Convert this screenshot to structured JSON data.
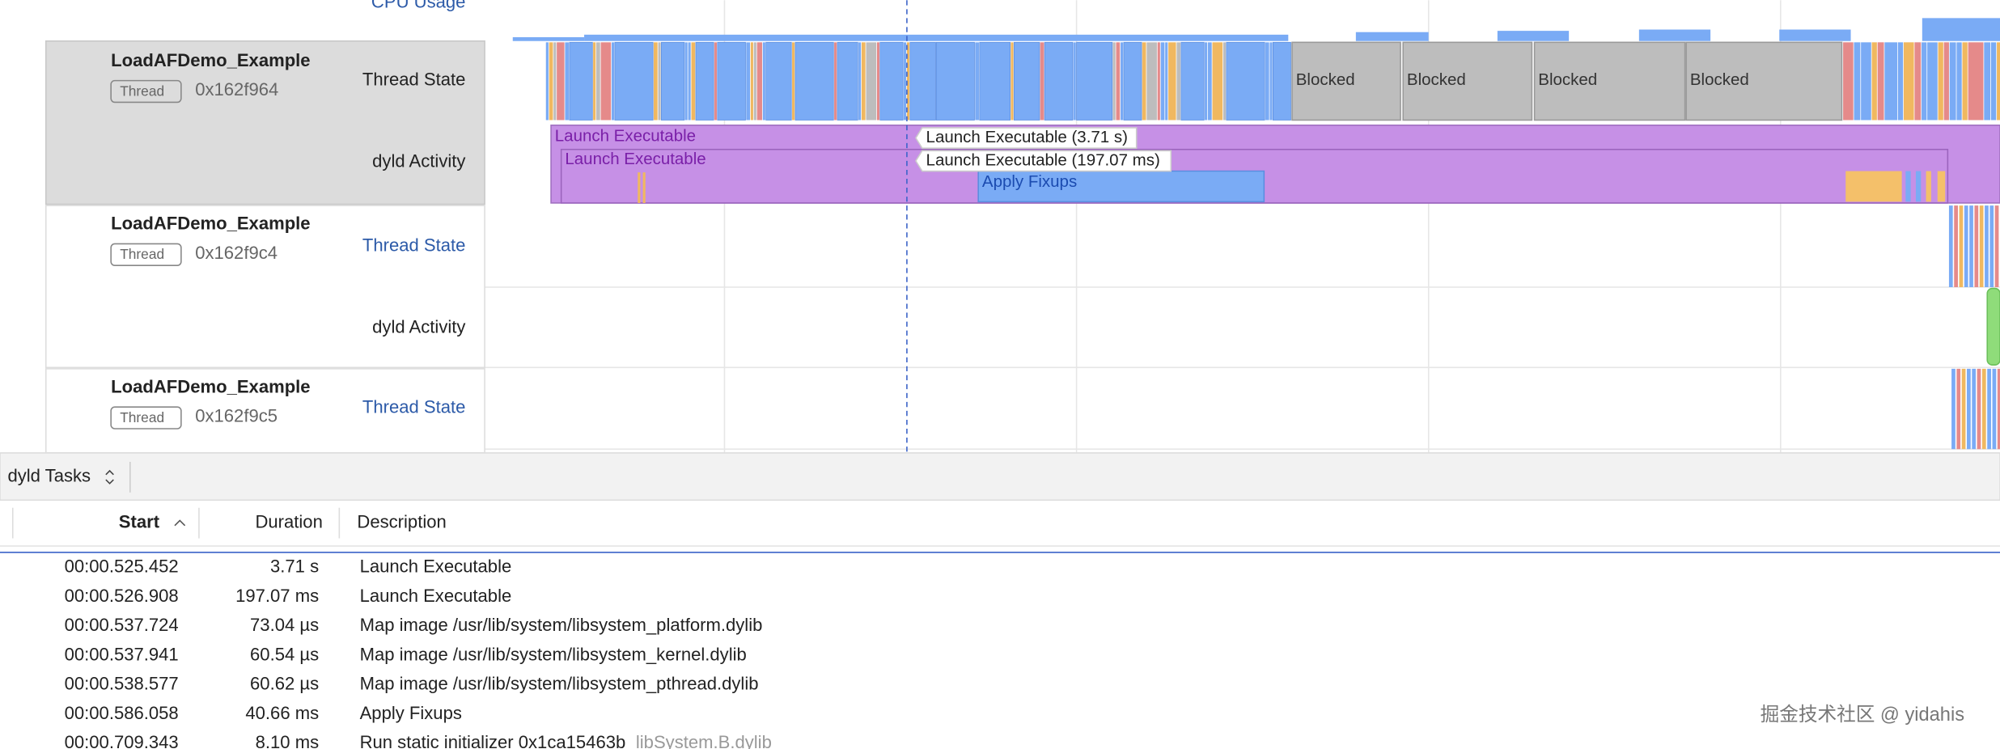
{
  "cpu_label": "CPU Usage",
  "threads": [
    {
      "name": "LoadAFDemo_Example",
      "badge": "Thread",
      "id": "0x162f964",
      "tracks": [
        "Thread State",
        "dyld Activity"
      ]
    },
    {
      "name": "LoadAFDemo_Example",
      "badge": "Thread",
      "id": "0x162f9c4",
      "tracks": [
        "Thread State",
        "dyld Activity"
      ]
    },
    {
      "name": "LoadAFDemo_Example",
      "badge": "Thread",
      "id": "0x162f9c5",
      "tracks": [
        "Thread State"
      ]
    }
  ],
  "timeline": {
    "blocked": [
      "Blocked",
      "Blocked",
      "Blocked",
      "Blocked"
    ],
    "intervals": [
      "Launch Executable",
      "Launch Executable",
      "Apply Fixups"
    ],
    "tooltips": [
      "Launch Executable (3.71 s)",
      "Launch Executable (197.07 ms)"
    ]
  },
  "detail": {
    "selector": "dyld Tasks",
    "columns": [
      "Start",
      "Duration",
      "Description"
    ],
    "rows": [
      [
        "00:00.525.452",
        "3.71 s",
        "Launch Executable"
      ],
      [
        "00:00.526.908",
        "197.07 ms",
        "Launch Executable"
      ],
      [
        "00:00.537.724",
        "73.04 µs",
        "Map image /usr/lib/system/libsystem_platform.dylib"
      ],
      [
        "00:00.537.941",
        "60.54 µs",
        "Map image /usr/lib/system/libsystem_kernel.dylib"
      ],
      [
        "00:00.538.577",
        "60.62 µs",
        "Map image /usr/lib/system/libsystem_pthread.dylib"
      ],
      [
        "00:00.586.058",
        "40.66 ms",
        "Apply Fixups"
      ],
      [
        "00:00.709.343",
        "8.10 ms",
        "Run static initializer 0x1ca15463b",
        "libSystem.B.dylib"
      ]
    ]
  },
  "watermark": "掘金技术社区 @ yidahis"
}
